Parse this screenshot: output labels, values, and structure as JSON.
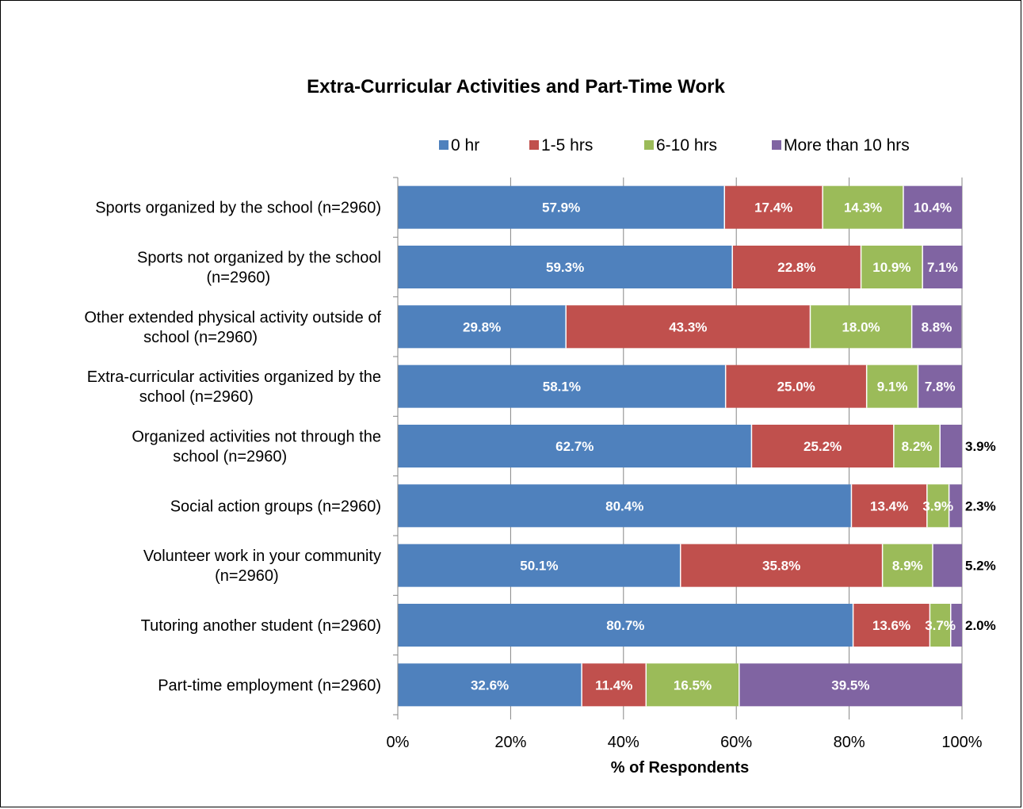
{
  "chart_data": {
    "type": "bar",
    "orientation": "horizontal",
    "stacked": "percent",
    "title": "Extra-Curricular Activities and Part-Time Work",
    "xlabel": "% of Respondents",
    "ylabel": "",
    "xlim": [
      0,
      100
    ],
    "x_ticks": [
      "0%",
      "20%",
      "40%",
      "60%",
      "80%",
      "100%"
    ],
    "legend_position": "top",
    "grid": true,
    "categories": [
      [
        "Sports organized by the school (n=2960)"
      ],
      [
        "Sports not organized by the school",
        "(n=2960)"
      ],
      [
        "Other extended physical activity outside of",
        "school (n=2960)"
      ],
      [
        "Extra-curricular activities organized by the",
        "school (n=2960)"
      ],
      [
        "Organized activities not through the",
        "school (n=2960)"
      ],
      [
        "Social action groups (n=2960)"
      ],
      [
        "Volunteer work in your community",
        "(n=2960)"
      ],
      [
        "Tutoring another student (n=2960)"
      ],
      [
        "Part-time employment (n=2960)"
      ]
    ],
    "series": [
      {
        "name": "0 hr",
        "color": "#4F81BD",
        "values": [
          57.9,
          59.3,
          29.8,
          58.1,
          62.7,
          80.4,
          50.1,
          80.7,
          32.6
        ]
      },
      {
        "name": "1-5 hrs",
        "color": "#C0504D",
        "values": [
          17.4,
          22.8,
          43.3,
          25.0,
          25.2,
          13.4,
          35.8,
          13.6,
          11.4
        ]
      },
      {
        "name": "6-10 hrs",
        "color": "#9BBB59",
        "values": [
          14.3,
          10.9,
          18.0,
          9.1,
          8.2,
          3.9,
          8.9,
          3.7,
          16.5
        ]
      },
      {
        "name": "More than 10 hrs",
        "color": "#8064A2",
        "values": [
          10.4,
          7.1,
          8.8,
          7.8,
          3.9,
          2.3,
          5.2,
          2.0,
          39.5
        ]
      }
    ]
  }
}
